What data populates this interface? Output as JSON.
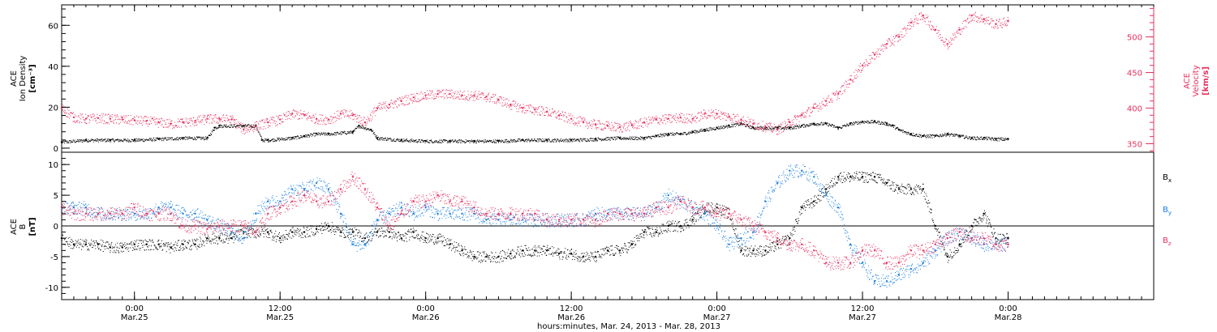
{
  "colors": {
    "density": "#000000",
    "velocity": "#e8305f",
    "bx": "#000000",
    "by": "#1a7fe0",
    "bz": "#e8305f",
    "axis": "#000000"
  },
  "time_axis": {
    "xlabel": "hours:minutes, Mar. 24, 2013 - Mar. 28, 2013",
    "range_hours": [
      18.0,
      108.0
    ],
    "ticks": [
      {
        "hour": 24,
        "time": "0:00",
        "date": "Mar.25"
      },
      {
        "hour": 36,
        "time": "12:00",
        "date": "Mar.25"
      },
      {
        "hour": 48,
        "time": "0:00",
        "date": "Mar.26"
      },
      {
        "hour": 60,
        "time": "12:00",
        "date": "Mar.26"
      },
      {
        "hour": 72,
        "time": "0:00",
        "date": "Mar.27"
      },
      {
        "hour": 84,
        "time": "12:00",
        "date": "Mar.27"
      },
      {
        "hour": 96,
        "time": "0:00",
        "date": "Mar.28"
      }
    ]
  },
  "chart_data": [
    {
      "type": "scatter",
      "panel": "top",
      "ylabel_left": [
        "ACE",
        "Ion Density",
        "[cm⁻³]"
      ],
      "ylabel_right": [
        "ACE",
        "Velocity",
        "[km/s]"
      ],
      "ylim_left": [
        -2,
        70
      ],
      "yticks_left": [
        "0",
        "20",
        "40",
        "60"
      ],
      "ylim_right": [
        338,
        545
      ],
      "yticks_right": [
        "350",
        "400",
        "450",
        "500"
      ],
      "series": [
        {
          "axis": "left",
          "x": [
            18,
            20,
            22,
            24,
            26,
            28,
            30,
            30.6,
            31,
            33,
            34,
            34.5,
            35,
            37,
            38,
            39,
            40,
            42,
            42.5,
            43.5,
            44,
            46,
            48,
            50,
            52,
            54,
            56,
            58,
            60,
            62,
            64,
            66,
            67,
            68,
            69,
            70,
            71,
            72,
            73,
            74,
            75,
            76,
            77,
            78,
            79,
            80,
            81,
            82,
            83,
            84,
            85,
            86,
            86.5,
            87,
            88,
            89,
            90,
            91,
            92,
            93,
            94,
            95,
            96
          ],
          "y": [
            3,
            4,
            4,
            4,
            4.5,
            5,
            5,
            10,
            11,
            11,
            11,
            4,
            4,
            5,
            6,
            7,
            7,
            8,
            11,
            9,
            5,
            4,
            3.5,
            3.5,
            3.5,
            3.5,
            4,
            4,
            4,
            4.5,
            5,
            5,
            6,
            7,
            7,
            8,
            9,
            10,
            11,
            12,
            10,
            10,
            10,
            10,
            11,
            12,
            12,
            10,
            12,
            13,
            13,
            12,
            11,
            9,
            7,
            6,
            6,
            7,
            6,
            5,
            5,
            4.5,
            4.5
          ]
        },
        {
          "axis": "right",
          "x": [
            18,
            19,
            20,
            21,
            22,
            23,
            24,
            25,
            26,
            27,
            28,
            29,
            30,
            31,
            32,
            33,
            34,
            35,
            36,
            37,
            38,
            39,
            40,
            41,
            42,
            43,
            44,
            45,
            46,
            47,
            48,
            49,
            50,
            51,
            52,
            53,
            54,
            55,
            56,
            57,
            58,
            59,
            60,
            61,
            62,
            63,
            64,
            65,
            66,
            67,
            68,
            69,
            70,
            71,
            72,
            73,
            74,
            75,
            76,
            77,
            78,
            79,
            80,
            81,
            82,
            83,
            84,
            85,
            86,
            87,
            88,
            89,
            90,
            91,
            92,
            93,
            94,
            95,
            96
          ],
          "y": [
            400,
            387,
            385,
            386,
            385,
            384,
            383,
            382,
            380,
            378,
            380,
            382,
            385,
            385,
            384,
            370,
            375,
            380,
            384,
            392,
            390,
            385,
            384,
            392,
            390,
            380,
            400,
            405,
            410,
            415,
            418,
            420,
            420,
            418,
            418,
            416,
            412,
            405,
            400,
            398,
            395,
            390,
            385,
            380,
            377,
            375,
            373,
            376,
            380,
            384,
            385,
            387,
            385,
            392,
            392,
            388,
            384,
            378,
            374,
            370,
            380,
            390,
            400,
            410,
            420,
            440,
            460,
            475,
            490,
            500,
            520,
            530,
            510,
            490,
            510,
            530,
            525,
            518,
            522
          ]
        }
      ]
    },
    {
      "type": "scatter",
      "panel": "bottom",
      "ylabel": [
        "ACE",
        "B",
        "[nT]"
      ],
      "ylim": [
        -12,
        12
      ],
      "yticks": [
        "-10",
        "-5",
        "0",
        "5",
        "10"
      ],
      "series": [
        {
          "name": "Bx",
          "x": [
            18,
            19,
            20,
            21,
            22,
            23,
            24,
            25,
            26,
            27,
            28,
            29,
            30,
            31,
            32,
            33,
            34,
            35,
            36,
            37,
            38,
            39,
            40,
            41,
            42,
            43,
            44,
            45,
            46,
            47,
            48,
            49,
            50,
            51,
            52,
            53,
            54,
            55,
            56,
            57,
            58,
            59,
            60,
            61,
            62,
            63,
            64,
            65,
            66,
            67,
            68,
            69,
            70,
            71,
            72,
            73,
            74,
            75,
            76,
            77,
            78,
            79,
            80,
            81,
            82,
            83,
            84,
            85,
            86,
            87,
            88,
            89,
            90,
            91,
            92,
            93,
            94,
            95,
            96
          ],
          "y": [
            -2,
            -3,
            -3,
            -3,
            -3.5,
            -3.5,
            -3,
            -3,
            -3,
            -3.5,
            -3,
            -3,
            -2,
            -2,
            -2,
            -1,
            -1,
            -1,
            -2,
            -1,
            -1,
            -0.5,
            0,
            -1,
            -1,
            -2,
            -1,
            -1,
            -2,
            -1,
            -2,
            -2,
            -3,
            -4,
            -5,
            -5,
            -5,
            -4.5,
            -4,
            -4,
            -4,
            -4.5,
            -4.5,
            -5,
            -5,
            -4,
            -4,
            -3,
            -1,
            -1,
            0,
            0,
            1,
            3,
            3,
            2,
            -4,
            -4,
            -4,
            -3,
            -2,
            3,
            4,
            6,
            8,
            8,
            8,
            8,
            7,
            6,
            6,
            6,
            0,
            -5,
            -3,
            0,
            2,
            -2,
            -2
          ]
        },
        {
          "name": "By",
          "x": [
            18,
            19,
            20,
            21,
            22,
            23,
            24,
            25,
            26,
            27,
            28,
            29,
            30,
            31,
            32,
            33,
            34,
            35,
            36,
            37,
            38,
            39,
            40,
            41,
            42,
            43,
            44,
            45,
            46,
            47,
            48,
            49,
            50,
            51,
            52,
            53,
            54,
            55,
            56,
            57,
            58,
            59,
            60,
            61,
            62,
            63,
            64,
            65,
            66,
            67,
            68,
            69,
            70,
            71,
            72,
            73,
            74,
            75,
            76,
            77,
            78,
            79,
            80,
            81,
            82,
            83,
            84,
            85,
            86,
            87,
            88,
            89,
            90,
            91,
            92,
            93,
            94,
            95,
            96
          ],
          "y": [
            3,
            3,
            3,
            2,
            2,
            2,
            2,
            2,
            3,
            3,
            2,
            2,
            1,
            0,
            -1,
            -2,
            2,
            4,
            4,
            6,
            6,
            7,
            6,
            2,
            -3,
            -3,
            1,
            2,
            3,
            2,
            3,
            2,
            2,
            2,
            2,
            1,
            1,
            1,
            1,
            1,
            1,
            1,
            1,
            1,
            2,
            2,
            2,
            2,
            2,
            3,
            5,
            4,
            3,
            2,
            0,
            -3,
            -2,
            -1,
            4,
            7,
            9,
            9,
            8,
            5,
            3,
            -3,
            -6,
            -9,
            -9,
            -8,
            -7,
            -6,
            -4,
            -2,
            -1,
            -2,
            -3,
            -3,
            -3
          ]
        },
        {
          "name": "Bz",
          "x": [
            18,
            19,
            20,
            21,
            22,
            23,
            24,
            25,
            26,
            27,
            28,
            29,
            30,
            31,
            32,
            33,
            34,
            35,
            36,
            37,
            38,
            39,
            40,
            41,
            42,
            43,
            44,
            45,
            46,
            47,
            48,
            49,
            50,
            51,
            52,
            53,
            54,
            55,
            56,
            57,
            58,
            59,
            60,
            61,
            62,
            63,
            64,
            65,
            66,
            67,
            68,
            69,
            70,
            71,
            72,
            73,
            74,
            75,
            76,
            77,
            78,
            79,
            80,
            81,
            82,
            83,
            84,
            85,
            86,
            87,
            88,
            89,
            90,
            91,
            92,
            93,
            94,
            95,
            96
          ],
          "y": [
            3,
            2,
            2,
            2,
            2,
            2,
            3,
            2,
            2,
            2,
            0,
            0,
            -0.5,
            0,
            0,
            0,
            -1,
            2,
            3,
            4,
            5,
            4,
            4,
            6,
            8,
            6,
            3,
            0,
            2,
            4,
            4,
            5,
            4,
            4,
            3,
            2,
            2,
            2,
            2,
            2,
            1,
            1,
            1,
            1,
            1,
            2,
            2,
            2,
            2,
            3,
            3,
            4,
            3,
            3,
            2,
            2,
            1,
            0,
            -1,
            -2,
            -3,
            -3,
            -4,
            -6,
            -6,
            -6,
            -4,
            -4,
            -6,
            -6,
            -4,
            -4,
            -3,
            -2,
            -1,
            -2,
            -2,
            -3,
            -3
          ]
        }
      ]
    }
  ]
}
